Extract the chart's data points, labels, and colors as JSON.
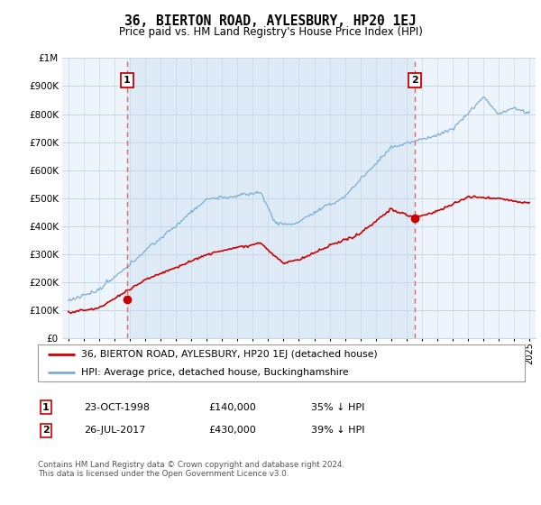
{
  "title": "36, BIERTON ROAD, AYLESBURY, HP20 1EJ",
  "subtitle": "Price paid vs. HM Land Registry's House Price Index (HPI)",
  "legend_label_red": "36, BIERTON ROAD, AYLESBURY, HP20 1EJ (detached house)",
  "legend_label_blue": "HPI: Average price, detached house, Buckinghamshire",
  "footnote": "Contains HM Land Registry data © Crown copyright and database right 2024.\nThis data is licensed under the Open Government Licence v3.0.",
  "sale1_label": "1",
  "sale1_date": "23-OCT-1998",
  "sale1_price": "£140,000",
  "sale1_note": "35% ↓ HPI",
  "sale2_label": "2",
  "sale2_date": "26-JUL-2017",
  "sale2_price": "£430,000",
  "sale2_note": "39% ↓ HPI",
  "sale1_year": 1998.8,
  "sale1_value": 140000,
  "sale2_year": 2017.55,
  "sale2_value": 430000,
  "ylim_max": 1000000,
  "background_color": "#ffffff",
  "plot_bg_color": "#eef4fb",
  "grid_color": "#c8d8e8",
  "red_color": "#cc0000",
  "blue_color": "#7aadd4",
  "vline_color": "#dd6666",
  "shade_color": "#d8e8f4"
}
